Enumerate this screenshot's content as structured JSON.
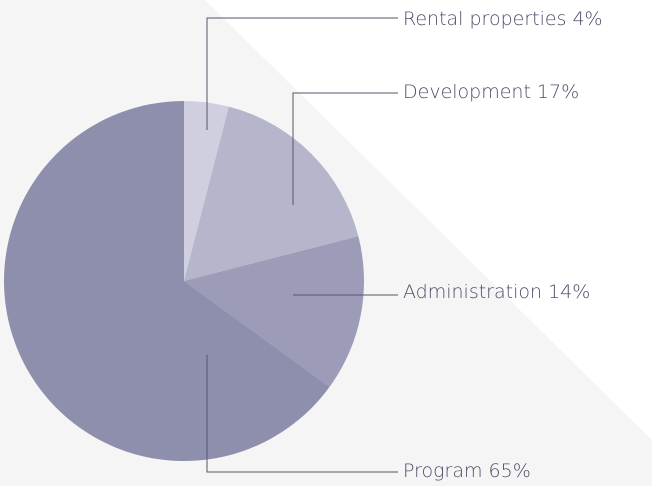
{
  "chart_data": {
    "type": "pie",
    "categories": [
      "Rental properties",
      "Development",
      "Administration",
      "Program"
    ],
    "values": [
      4,
      17,
      14,
      65
    ],
    "value_labels": [
      "4%",
      "17%",
      "14%",
      "65%"
    ],
    "colors": [
      "#cfcfdf",
      "#b5b6cc",
      "#9c9bb8",
      "#8e8fad"
    ],
    "start_angle": 90,
    "direction": "clockwise"
  }
}
